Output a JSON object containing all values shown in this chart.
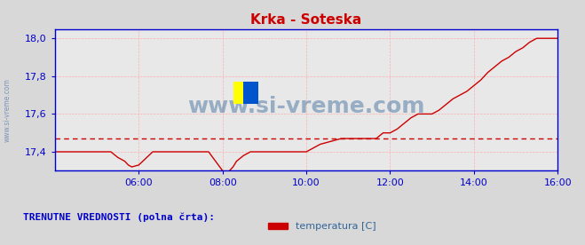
{
  "title": "Krka - Soteska",
  "title_color": "#cc0000",
  "bg_color": "#d8d8d8",
  "plot_bg_color": "#e8e8e8",
  "grid_color": "#ffaaaa",
  "ylabel_color": "#0000cc",
  "xlabel_color": "#0000cc",
  "watermark": "www.si-vreme.com",
  "watermark_color": "#336699",
  "watermark_alpha": 0.5,
  "legend_label": "temperatura [C]",
  "legend_color": "#cc0000",
  "ylim": [
    17.3,
    18.05
  ],
  "yticks": [
    17.4,
    17.6,
    17.8,
    18.0
  ],
  "ytick_labels": [
    "17,4",
    "17,6",
    "17,8",
    "18,0"
  ],
  "xlim_start": 240,
  "xlim_end": 960,
  "xtick_positions": [
    360,
    480,
    600,
    720,
    840,
    960
  ],
  "xtick_labels": [
    "06:00",
    "08:00",
    "10:00",
    "12:00",
    "14:00",
    "16:00"
  ],
  "avg_line_y": 17.47,
  "avg_line_color": "#cc0000",
  "line_color": "#cc0000",
  "baseline_color": "#6666cc",
  "footnote": "TRENUTNE VREDNOSTI (polna črta):",
  "footnote_color": "#0000cc",
  "time_data": [
    240,
    260,
    280,
    300,
    320,
    330,
    340,
    345,
    350,
    360,
    380,
    400,
    420,
    440,
    460,
    480,
    485,
    490,
    495,
    500,
    510,
    520,
    540,
    560,
    580,
    600,
    610,
    620,
    630,
    640,
    650,
    660,
    665,
    670,
    675,
    680,
    690,
    700,
    710,
    720,
    730,
    740,
    750,
    760,
    770,
    780,
    790,
    800,
    810,
    820,
    830,
    840,
    850,
    855,
    860,
    870,
    880,
    890,
    900,
    910,
    920,
    930,
    940,
    950,
    960
  ],
  "temp_data": [
    17.4,
    17.4,
    17.4,
    17.4,
    17.4,
    17.37,
    17.35,
    17.33,
    17.32,
    17.33,
    17.4,
    17.4,
    17.4,
    17.4,
    17.4,
    17.3,
    17.28,
    17.3,
    17.32,
    17.35,
    17.38,
    17.4,
    17.4,
    17.4,
    17.4,
    17.4,
    17.42,
    17.44,
    17.45,
    17.46,
    17.47,
    17.47,
    17.47,
    17.47,
    17.47,
    17.47,
    17.47,
    17.47,
    17.5,
    17.5,
    17.52,
    17.55,
    17.58,
    17.6,
    17.6,
    17.6,
    17.62,
    17.65,
    17.68,
    17.7,
    17.72,
    17.75,
    17.78,
    17.8,
    17.82,
    17.85,
    17.88,
    17.9,
    17.93,
    17.95,
    17.98,
    18.0,
    18.0,
    18.0,
    18.0
  ]
}
